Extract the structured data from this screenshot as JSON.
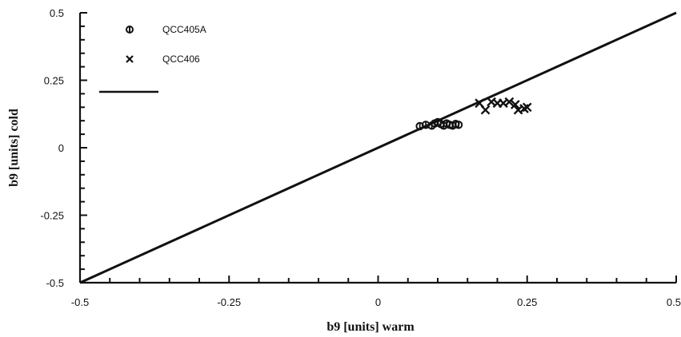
{
  "chart_data": {
    "type": "scatter",
    "title": "",
    "xlabel": "b9 [units] warm",
    "ylabel": "b9 [units] cold",
    "xlim": [
      -0.5,
      0.5
    ],
    "ylim": [
      -0.5,
      0.5
    ],
    "x_ticks": [
      -0.5,
      -0.25,
      0,
      0.25,
      0.5
    ],
    "x_tick_labels": [
      "-0.5",
      "-0.25",
      "0",
      "0.25",
      "0.5"
    ],
    "y_ticks": [
      -0.5,
      -0.25,
      0,
      0.25,
      0.5
    ],
    "y_tick_labels": [
      "-0.5",
      "-0.25",
      "0",
      "0.25",
      "0.5"
    ],
    "grid": false,
    "legend_position": "top-left",
    "series": [
      {
        "name": "QCC405A",
        "marker": "circle-cross",
        "points": [
          {
            "x": 0.07,
            "y": 0.08
          },
          {
            "x": 0.08,
            "y": 0.085
          },
          {
            "x": 0.09,
            "y": 0.082
          },
          {
            "x": 0.095,
            "y": 0.09
          },
          {
            "x": 0.1,
            "y": 0.095
          },
          {
            "x": 0.105,
            "y": 0.088
          },
          {
            "x": 0.11,
            "y": 0.082
          },
          {
            "x": 0.115,
            "y": 0.09
          },
          {
            "x": 0.12,
            "y": 0.085
          },
          {
            "x": 0.125,
            "y": 0.082
          },
          {
            "x": 0.13,
            "y": 0.088
          },
          {
            "x": 0.135,
            "y": 0.085
          }
        ]
      },
      {
        "name": "QCC406",
        "marker": "x",
        "points": [
          {
            "x": 0.17,
            "y": 0.165
          },
          {
            "x": 0.18,
            "y": 0.14
          },
          {
            "x": 0.19,
            "y": 0.17
          },
          {
            "x": 0.2,
            "y": 0.165
          },
          {
            "x": 0.21,
            "y": 0.165
          },
          {
            "x": 0.22,
            "y": 0.17
          },
          {
            "x": 0.23,
            "y": 0.16
          },
          {
            "x": 0.235,
            "y": 0.14
          },
          {
            "x": 0.245,
            "y": 0.145
          },
          {
            "x": 0.25,
            "y": 0.15
          }
        ]
      },
      {
        "name": "",
        "type": "line",
        "points": [
          {
            "x": -0.5,
            "y": -0.5
          },
          {
            "x": 0.5,
            "y": 0.5
          }
        ]
      }
    ]
  },
  "legend": {
    "items": [
      {
        "label": "QCC405A",
        "symbol": "circle-cross"
      },
      {
        "label": "QCC406",
        "symbol": "x"
      },
      {
        "label": "",
        "symbol": "line"
      }
    ]
  }
}
